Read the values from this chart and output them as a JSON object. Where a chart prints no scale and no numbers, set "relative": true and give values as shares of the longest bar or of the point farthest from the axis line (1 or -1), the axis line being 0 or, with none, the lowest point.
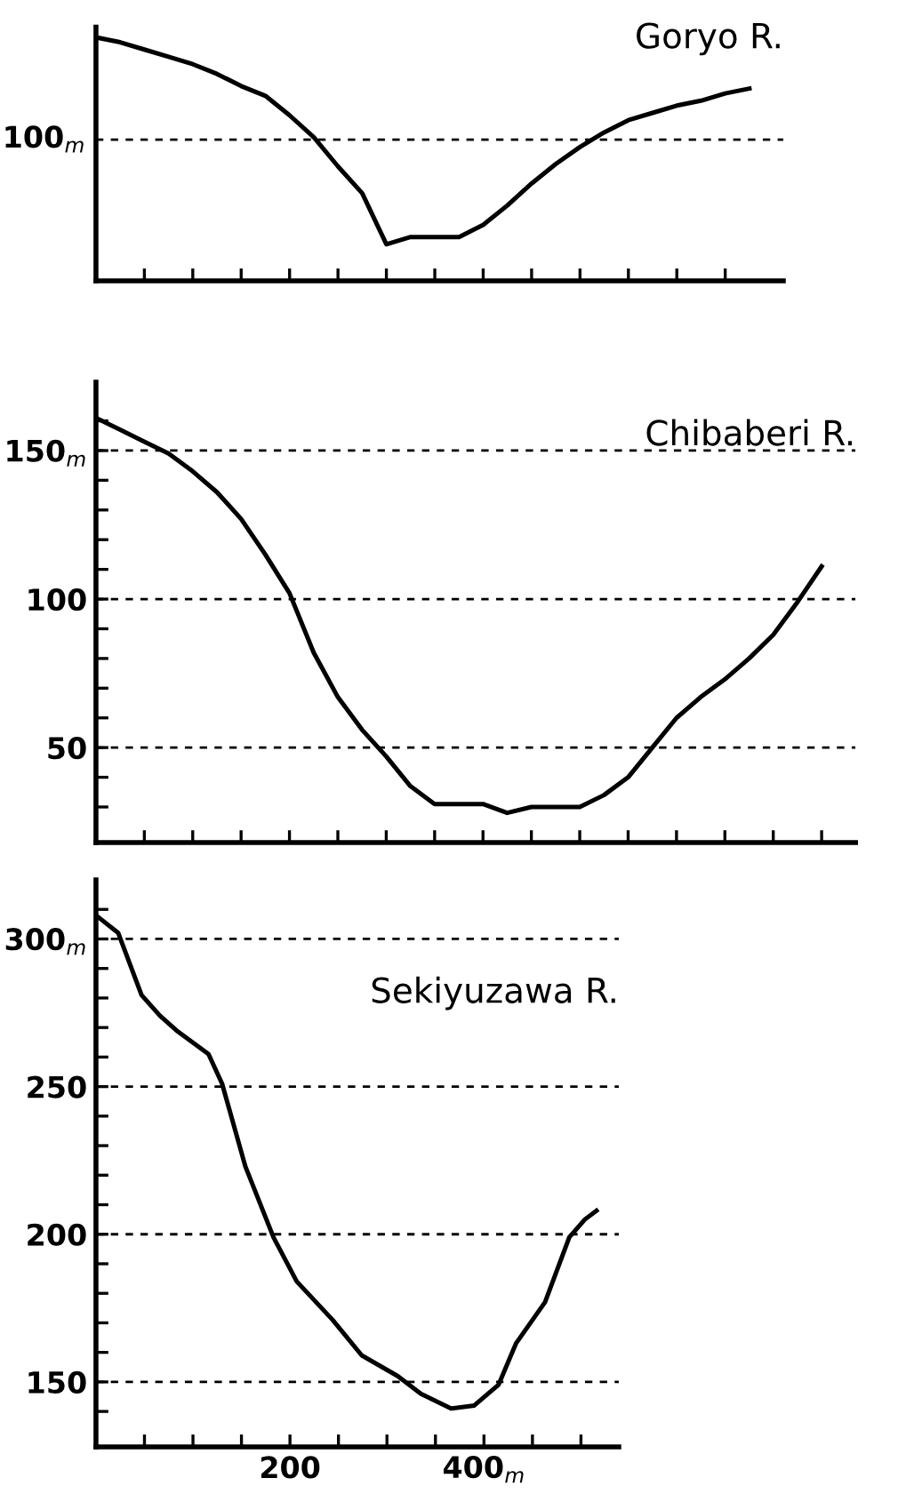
{
  "chart_data": [
    {
      "type": "line",
      "title": "Goryo R.",
      "relative": true,
      "line_style": "solid",
      "categories": [
        null,
        null,
        null,
        null,
        null,
        null,
        null,
        null,
        null,
        null,
        null,
        null,
        null,
        null,
        null,
        null,
        null,
        null,
        null,
        null,
        null,
        null,
        null,
        null,
        null,
        null,
        null,
        null
      ],
      "series": [
        {
          "color": "#000000",
          "values": [
            1.0,
            0.98,
            0.95,
            0.92,
            0.89,
            0.85,
            0.8,
            0.76,
            0.68,
            0.59,
            0.47,
            0.36,
            0.15,
            0.18,
            0.18,
            0.18,
            0.23,
            0.31,
            0.4,
            0.48,
            0.55,
            0.61,
            0.66,
            0.69,
            0.72,
            0.74,
            0.77,
            0.79
          ]
        }
      ],
      "ref_lines": [
        {
          "axis": "y",
          "value": 0.58,
          "label": "100$_{m}$",
          "color": "#000000",
          "line_style": "dashed"
        }
      ]
    },
    {
      "type": "line",
      "title": "Chibaberi R.",
      "tick_labels": "y",
      "line_style": "solid",
      "categories": [
        null,
        null,
        null,
        null,
        null,
        null,
        null,
        null,
        null,
        null,
        null,
        null,
        null,
        null,
        null,
        null,
        null,
        null,
        null,
        null,
        null,
        null,
        null,
        null,
        null,
        null,
        null,
        null,
        null,
        null,
        null
      ],
      "series": [
        {
          "color": "#000000",
          "values": [
            161,
            157,
            153,
            149,
            143,
            136,
            127,
            115,
            102,
            82,
            67,
            56,
            47,
            37,
            31,
            31,
            31,
            28,
            30,
            30,
            30,
            34,
            40,
            50,
            60,
            67,
            73,
            80,
            88,
            99,
            111
          ]
        }
      ],
      "ylim": [
        18,
        173
      ],
      "yticks": [
        {
          "value": 30,
          "label": null
        },
        {
          "value": 40,
          "label": null
        },
        {
          "value": 50,
          "label": "50"
        },
        {
          "value": 60,
          "label": null
        },
        {
          "value": 70,
          "label": null
        },
        {
          "value": 80,
          "label": null
        },
        {
          "value": 90,
          "label": null
        },
        {
          "value": 100,
          "label": "100"
        },
        {
          "value": 110,
          "label": null
        },
        {
          "value": 120,
          "label": null
        },
        {
          "value": 130,
          "label": null
        },
        {
          "value": 140,
          "label": null
        },
        {
          "value": 150,
          "label": "150$_{m}$"
        },
        {
          "value": 160,
          "label": null
        }
      ],
      "ref_lines": [
        {
          "axis": "y",
          "value": 150,
          "label": null,
          "color": "#000000",
          "line_style": "dashed"
        },
        {
          "axis": "y",
          "value": 100,
          "label": null,
          "color": "#000000",
          "line_style": "dashed"
        },
        {
          "axis": "y",
          "value": 50,
          "label": null,
          "color": "#000000",
          "line_style": "dashed"
        }
      ]
    },
    {
      "type": "line",
      "title": "Sekiyuzawa R.",
      "line_style": "solid",
      "x": [
        0,
        23,
        47,
        66,
        83,
        116,
        130,
        154,
        183,
        207,
        244,
        274,
        311,
        335,
        366,
        390,
        415,
        433,
        463,
        488,
        504,
        516
      ],
      "series": [
        {
          "color": "#000000",
          "values": [
            308,
            302,
            281,
            274,
            269,
            261,
            251,
            223,
            199,
            184,
            171,
            159,
            152,
            146,
            141,
            142,
            149,
            163,
            177,
            199,
            205,
            208
          ]
        }
      ],
      "xlim": [
        0,
        539
      ],
      "xticks": [
        {
          "value": 0,
          "label": null
        },
        {
          "value": 50,
          "label": null
        },
        {
          "value": 100,
          "label": null
        },
        {
          "value": 150,
          "label": null
        },
        {
          "value": 200,
          "label": "200"
        },
        {
          "value": 250,
          "label": null
        },
        {
          "value": 300,
          "label": null
        },
        {
          "value": 350,
          "label": null
        },
        {
          "value": 400,
          "label": "400$_{m}$"
        },
        {
          "value": 450,
          "label": null
        },
        {
          "value": 500,
          "label": null
        }
      ],
      "ylim": [
        128,
        320
      ],
      "yticks": [
        {
          "value": 140,
          "label": null
        },
        {
          "value": 150,
          "label": "150"
        },
        {
          "value": 160,
          "label": null
        },
        {
          "value": 170,
          "label": null
        },
        {
          "value": 180,
          "label": null
        },
        {
          "value": 190,
          "label": null
        },
        {
          "value": 200,
          "label": "200"
        },
        {
          "value": 210,
          "label": null
        },
        {
          "value": 220,
          "label": null
        },
        {
          "value": 230,
          "label": null
        },
        {
          "value": 240,
          "label": null
        },
        {
          "value": 250,
          "label": "250"
        },
        {
          "value": 260,
          "label": null
        },
        {
          "value": 270,
          "label": null
        },
        {
          "value": 280,
          "label": null
        },
        {
          "value": 290,
          "label": null
        },
        {
          "value": 300,
          "label": "300$_{m}$"
        },
        {
          "value": 310,
          "label": null
        }
      ],
      "ref_lines": [
        {
          "axis": "y",
          "value": 300,
          "label": null,
          "color": "#000000",
          "line_style": "dashed"
        },
        {
          "axis": "y",
          "value": 250,
          "label": null,
          "color": "#000000",
          "line_style": "dashed"
        },
        {
          "axis": "y",
          "value": 200,
          "label": null,
          "color": "#000000",
          "line_style": "dashed"
        },
        {
          "axis": "y",
          "value": 150,
          "label": null,
          "color": "#000000",
          "line_style": "dashed"
        }
      ]
    }
  ]
}
